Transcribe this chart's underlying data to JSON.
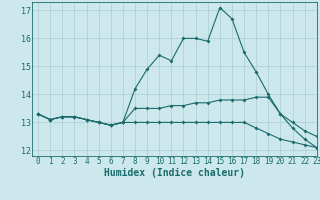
{
  "xlabel": "Humidex (Indice chaleur)",
  "xlim": [
    -0.5,
    23
  ],
  "ylim": [
    11.8,
    17.3
  ],
  "yticks": [
    12,
    13,
    14,
    15,
    16,
    17
  ],
  "xticks": [
    0,
    1,
    2,
    3,
    4,
    5,
    6,
    7,
    8,
    9,
    10,
    11,
    12,
    13,
    14,
    15,
    16,
    17,
    18,
    19,
    20,
    21,
    22,
    23
  ],
  "background_color": "#cce8ec",
  "grid_color": "#aacfd4",
  "line_color": "#1a6b6b",
  "line1": [
    13.3,
    13.1,
    13.2,
    13.2,
    13.1,
    13.0,
    12.9,
    13.0,
    14.2,
    14.9,
    15.4,
    15.2,
    16.0,
    16.0,
    15.9,
    17.1,
    16.7,
    15.5,
    14.8,
    14.0,
    13.3,
    12.8,
    12.4,
    12.1
  ],
  "line2": [
    13.3,
    13.1,
    13.2,
    13.2,
    13.1,
    13.0,
    12.9,
    13.0,
    13.5,
    13.5,
    13.5,
    13.6,
    13.6,
    13.7,
    13.7,
    13.8,
    13.8,
    13.8,
    13.9,
    13.9,
    13.3,
    13.0,
    12.7,
    12.5
  ],
  "line3": [
    13.3,
    13.1,
    13.2,
    13.2,
    13.1,
    13.0,
    12.9,
    13.0,
    13.0,
    13.0,
    13.0,
    13.0,
    13.0,
    13.0,
    13.0,
    13.0,
    13.0,
    13.0,
    12.8,
    12.6,
    12.4,
    12.3,
    12.2,
    12.1
  ]
}
